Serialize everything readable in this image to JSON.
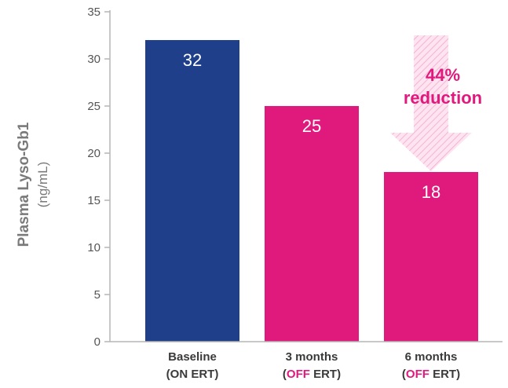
{
  "chart_data": {
    "type": "bar",
    "categories": [
      {
        "line1": "Baseline",
        "line2_pre": "(",
        "line2_hl": "ON",
        "line2_post": " ERT)",
        "highlight": false
      },
      {
        "line1": "3 months",
        "line2_pre": "(",
        "line2_hl": "OFF",
        "line2_post": " ERT)",
        "highlight": true
      },
      {
        "line1": "6 months",
        "line2_pre": "(",
        "line2_hl": "OFF",
        "line2_post": " ERT)",
        "highlight": true
      }
    ],
    "values": [
      32,
      25,
      18
    ],
    "data_labels": [
      "32",
      "25",
      "18"
    ],
    "bar_colors": [
      "#1f3f8a",
      "#e0197d",
      "#e0197d"
    ],
    "ylabel": "Plasma Lyso-Gb1",
    "ylabel_unit": "(ng/mL)",
    "ylim": [
      0,
      35
    ],
    "yticks": [
      0,
      5,
      10,
      15,
      20,
      25,
      30,
      35
    ],
    "grid": false,
    "annotation": {
      "line1": "44%",
      "line2": "reduction",
      "color": "#e0197d",
      "arrow_from_value": 35,
      "arrow_to_value": 18
    },
    "colors": {
      "axis": "#b5b5b5",
      "tick_text": "#555555",
      "highlight_text": "#e0197d",
      "arrow_fill": "#fbd6e8"
    }
  }
}
